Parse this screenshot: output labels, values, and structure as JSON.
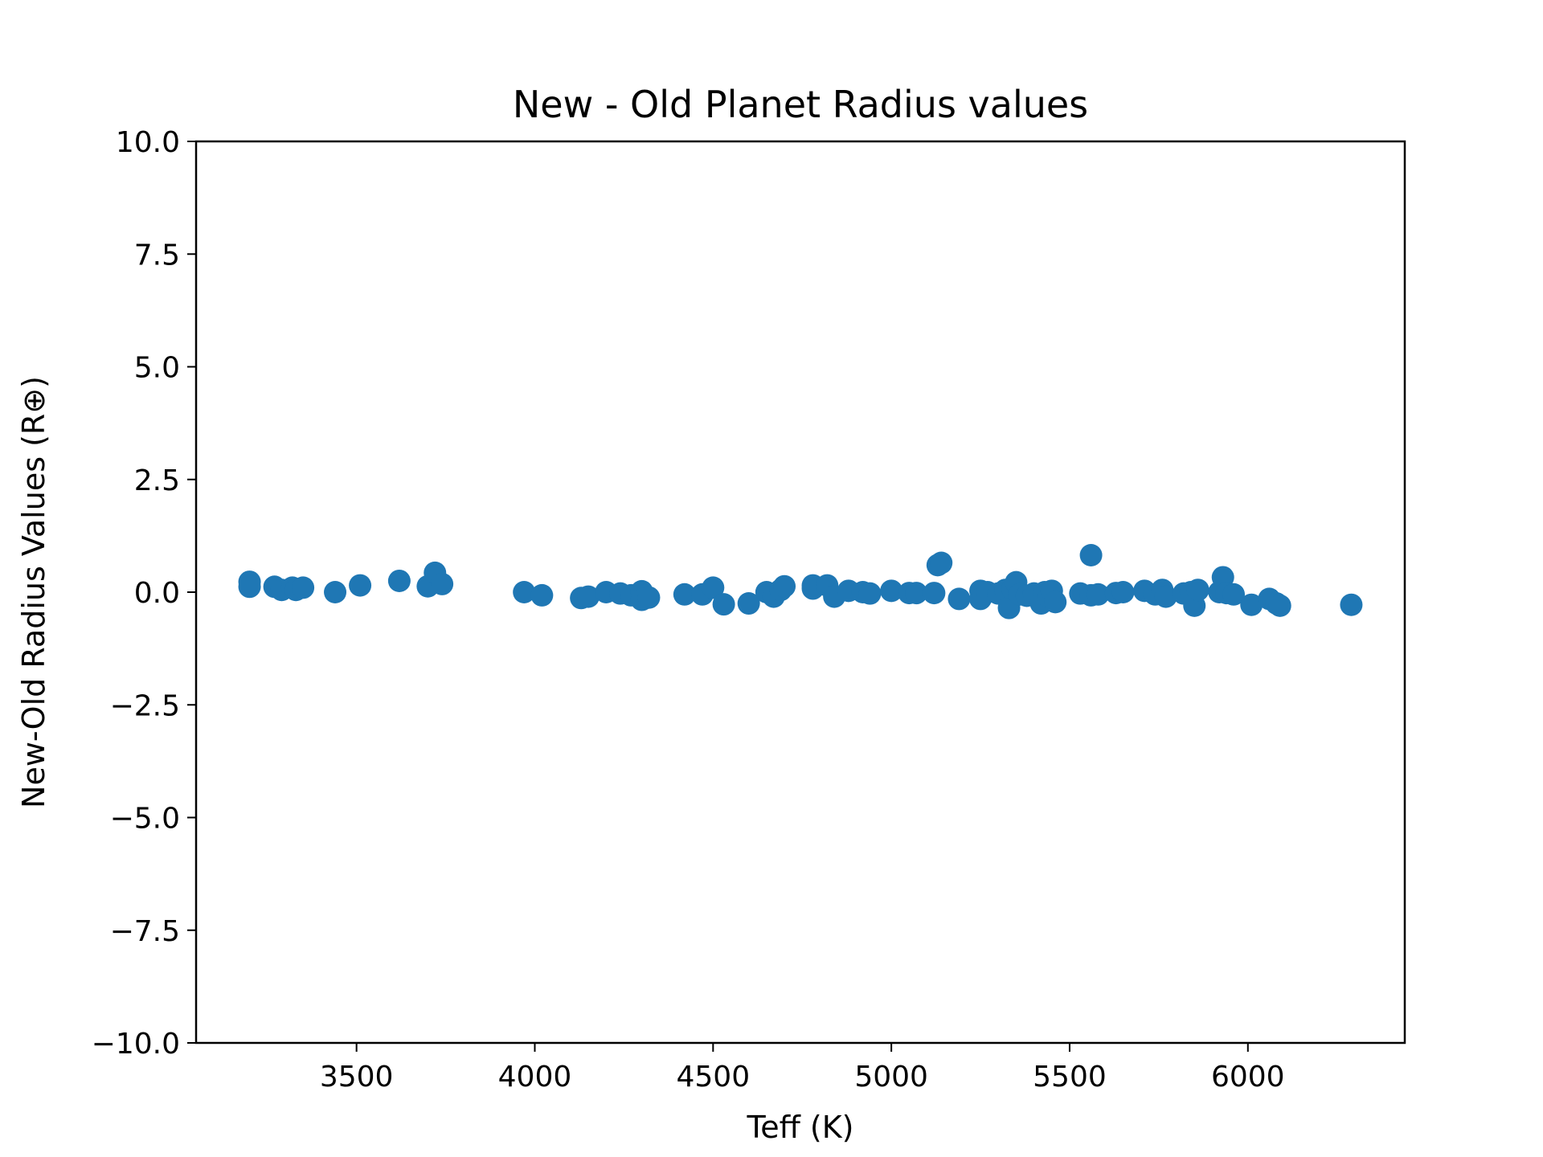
{
  "chart_data": {
    "type": "scatter",
    "title": "New - Old Planet Radius values",
    "xlabel": "Teff (K)",
    "ylabel": "New-Old Radius Values (R⊕)",
    "xlim": [
      3050,
      6440
    ],
    "ylim": [
      -10.0,
      10.0
    ],
    "xticks": [
      3500,
      4000,
      4500,
      5000,
      5500,
      6000
    ],
    "yticks": [
      10.0,
      7.5,
      5.0,
      2.5,
      0.0,
      -2.5,
      -5.0,
      -7.5,
      -10.0
    ],
    "ytick_labels": [
      "10.0",
      "7.5",
      "5.0",
      "2.5",
      "0.0",
      "−2.5",
      "−5.0",
      "−7.5",
      "−10.0"
    ],
    "grid": false,
    "marker_color": "#1f77b4",
    "points": [
      {
        "x": 3200,
        "y": 0.23
      },
      {
        "x": 3200,
        "y": 0.12
      },
      {
        "x": 3270,
        "y": 0.12
      },
      {
        "x": 3290,
        "y": 0.05
      },
      {
        "x": 3320,
        "y": 0.1
      },
      {
        "x": 3330,
        "y": 0.05
      },
      {
        "x": 3350,
        "y": 0.1
      },
      {
        "x": 3440,
        "y": 0.0
      },
      {
        "x": 3510,
        "y": 0.15
      },
      {
        "x": 3620,
        "y": 0.25
      },
      {
        "x": 3700,
        "y": 0.13
      },
      {
        "x": 3720,
        "y": 0.43
      },
      {
        "x": 3740,
        "y": 0.18
      },
      {
        "x": 3970,
        "y": 0.0
      },
      {
        "x": 4020,
        "y": -0.07
      },
      {
        "x": 4130,
        "y": -0.13
      },
      {
        "x": 4150,
        "y": -0.1
      },
      {
        "x": 4200,
        "y": 0.0
      },
      {
        "x": 4240,
        "y": -0.03
      },
      {
        "x": 4270,
        "y": -0.07
      },
      {
        "x": 4300,
        "y": 0.02
      },
      {
        "x": 4300,
        "y": -0.17
      },
      {
        "x": 4320,
        "y": -0.12
      },
      {
        "x": 4420,
        "y": -0.05
      },
      {
        "x": 4470,
        "y": -0.05
      },
      {
        "x": 4500,
        "y": 0.1
      },
      {
        "x": 4530,
        "y": -0.27
      },
      {
        "x": 4600,
        "y": -0.25
      },
      {
        "x": 4650,
        "y": 0.0
      },
      {
        "x": 4670,
        "y": -0.1
      },
      {
        "x": 4690,
        "y": 0.05
      },
      {
        "x": 4700,
        "y": 0.13
      },
      {
        "x": 4780,
        "y": 0.15
      },
      {
        "x": 4780,
        "y": 0.08
      },
      {
        "x": 4820,
        "y": 0.15
      },
      {
        "x": 4840,
        "y": -0.1
      },
      {
        "x": 4880,
        "y": 0.03
      },
      {
        "x": 4920,
        "y": 0.0
      },
      {
        "x": 4940,
        "y": -0.03
      },
      {
        "x": 5000,
        "y": 0.03
      },
      {
        "x": 5050,
        "y": -0.02
      },
      {
        "x": 5070,
        "y": -0.02
      },
      {
        "x": 5120,
        "y": -0.02
      },
      {
        "x": 5130,
        "y": 0.6
      },
      {
        "x": 5140,
        "y": 0.65
      },
      {
        "x": 5190,
        "y": -0.15
      },
      {
        "x": 5250,
        "y": 0.03
      },
      {
        "x": 5250,
        "y": -0.15
      },
      {
        "x": 5270,
        "y": 0.0
      },
      {
        "x": 5300,
        "y": -0.03
      },
      {
        "x": 5320,
        "y": 0.05
      },
      {
        "x": 5330,
        "y": -0.35
      },
      {
        "x": 5340,
        "y": 0.07
      },
      {
        "x": 5350,
        "y": 0.22
      },
      {
        "x": 5360,
        "y": -0.05
      },
      {
        "x": 5380,
        "y": -0.08
      },
      {
        "x": 5400,
        "y": -0.03
      },
      {
        "x": 5420,
        "y": -0.25
      },
      {
        "x": 5430,
        "y": 0.0
      },
      {
        "x": 5440,
        "y": -0.1
      },
      {
        "x": 5450,
        "y": 0.03
      },
      {
        "x": 5460,
        "y": -0.22
      },
      {
        "x": 5530,
        "y": -0.03
      },
      {
        "x": 5560,
        "y": 0.82
      },
      {
        "x": 5560,
        "y": -0.07
      },
      {
        "x": 5580,
        "y": -0.05
      },
      {
        "x": 5630,
        "y": -0.02
      },
      {
        "x": 5650,
        "y": 0.0
      },
      {
        "x": 5710,
        "y": 0.03
      },
      {
        "x": 5740,
        "y": -0.05
      },
      {
        "x": 5760,
        "y": 0.05
      },
      {
        "x": 5770,
        "y": -0.1
      },
      {
        "x": 5820,
        "y": -0.03
      },
      {
        "x": 5840,
        "y": 0.0
      },
      {
        "x": 5850,
        "y": -0.3
      },
      {
        "x": 5860,
        "y": 0.05
      },
      {
        "x": 5920,
        "y": 0.0
      },
      {
        "x": 5930,
        "y": 0.33
      },
      {
        "x": 5940,
        "y": -0.02
      },
      {
        "x": 5960,
        "y": -0.05
      },
      {
        "x": 6010,
        "y": -0.28
      },
      {
        "x": 6060,
        "y": -0.15
      },
      {
        "x": 6080,
        "y": -0.25
      },
      {
        "x": 6090,
        "y": -0.3
      },
      {
        "x": 6290,
        "y": -0.28
      }
    ]
  }
}
